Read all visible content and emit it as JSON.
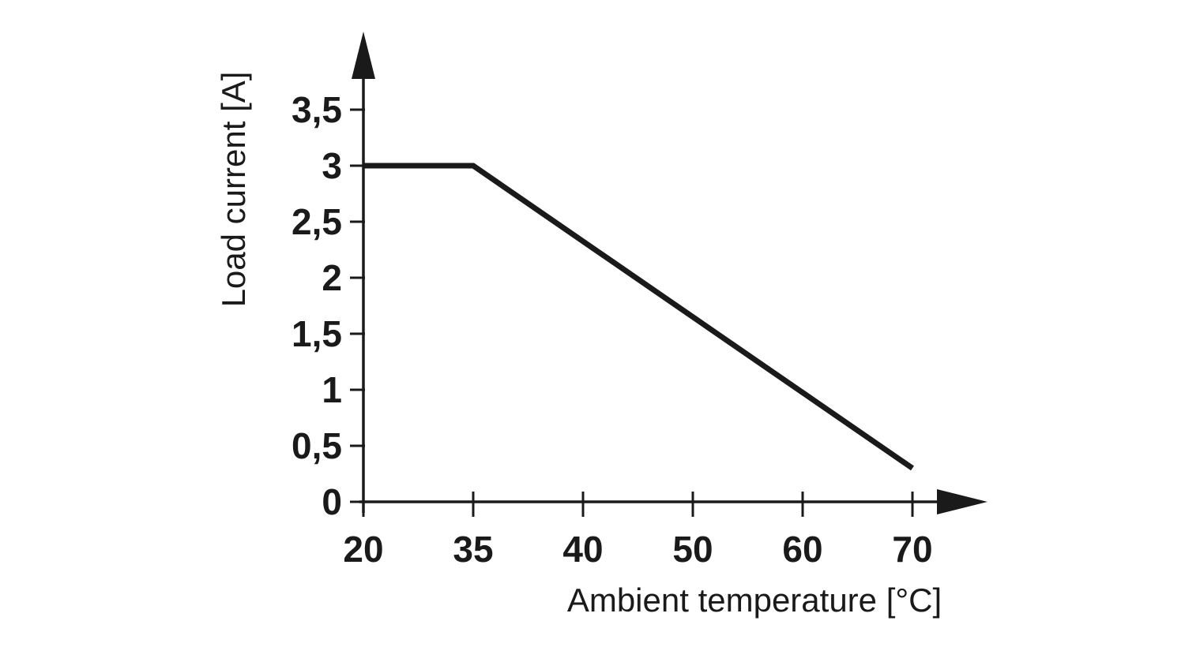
{
  "chart_data": {
    "type": "line",
    "title": "",
    "xlabel": "Ambient temperature [°C]",
    "ylabel": "Load current [A]",
    "x_tick_labels": [
      "20",
      "35",
      "40",
      "50",
      "60",
      "70"
    ],
    "y_tick_labels": [
      "0",
      "0,5",
      "1",
      "1,5",
      "2",
      "2,5",
      "3",
      "3,5"
    ],
    "x_range": [
      20,
      70
    ],
    "y_range": [
      0,
      3.5
    ],
    "grid": false,
    "legend": false,
    "line_color": "#1a1a1a",
    "series": [
      {
        "name": "load-current-derating-line",
        "points": [
          [
            20,
            3
          ],
          [
            35,
            3
          ],
          [
            70,
            0.3
          ]
        ]
      }
    ]
  }
}
